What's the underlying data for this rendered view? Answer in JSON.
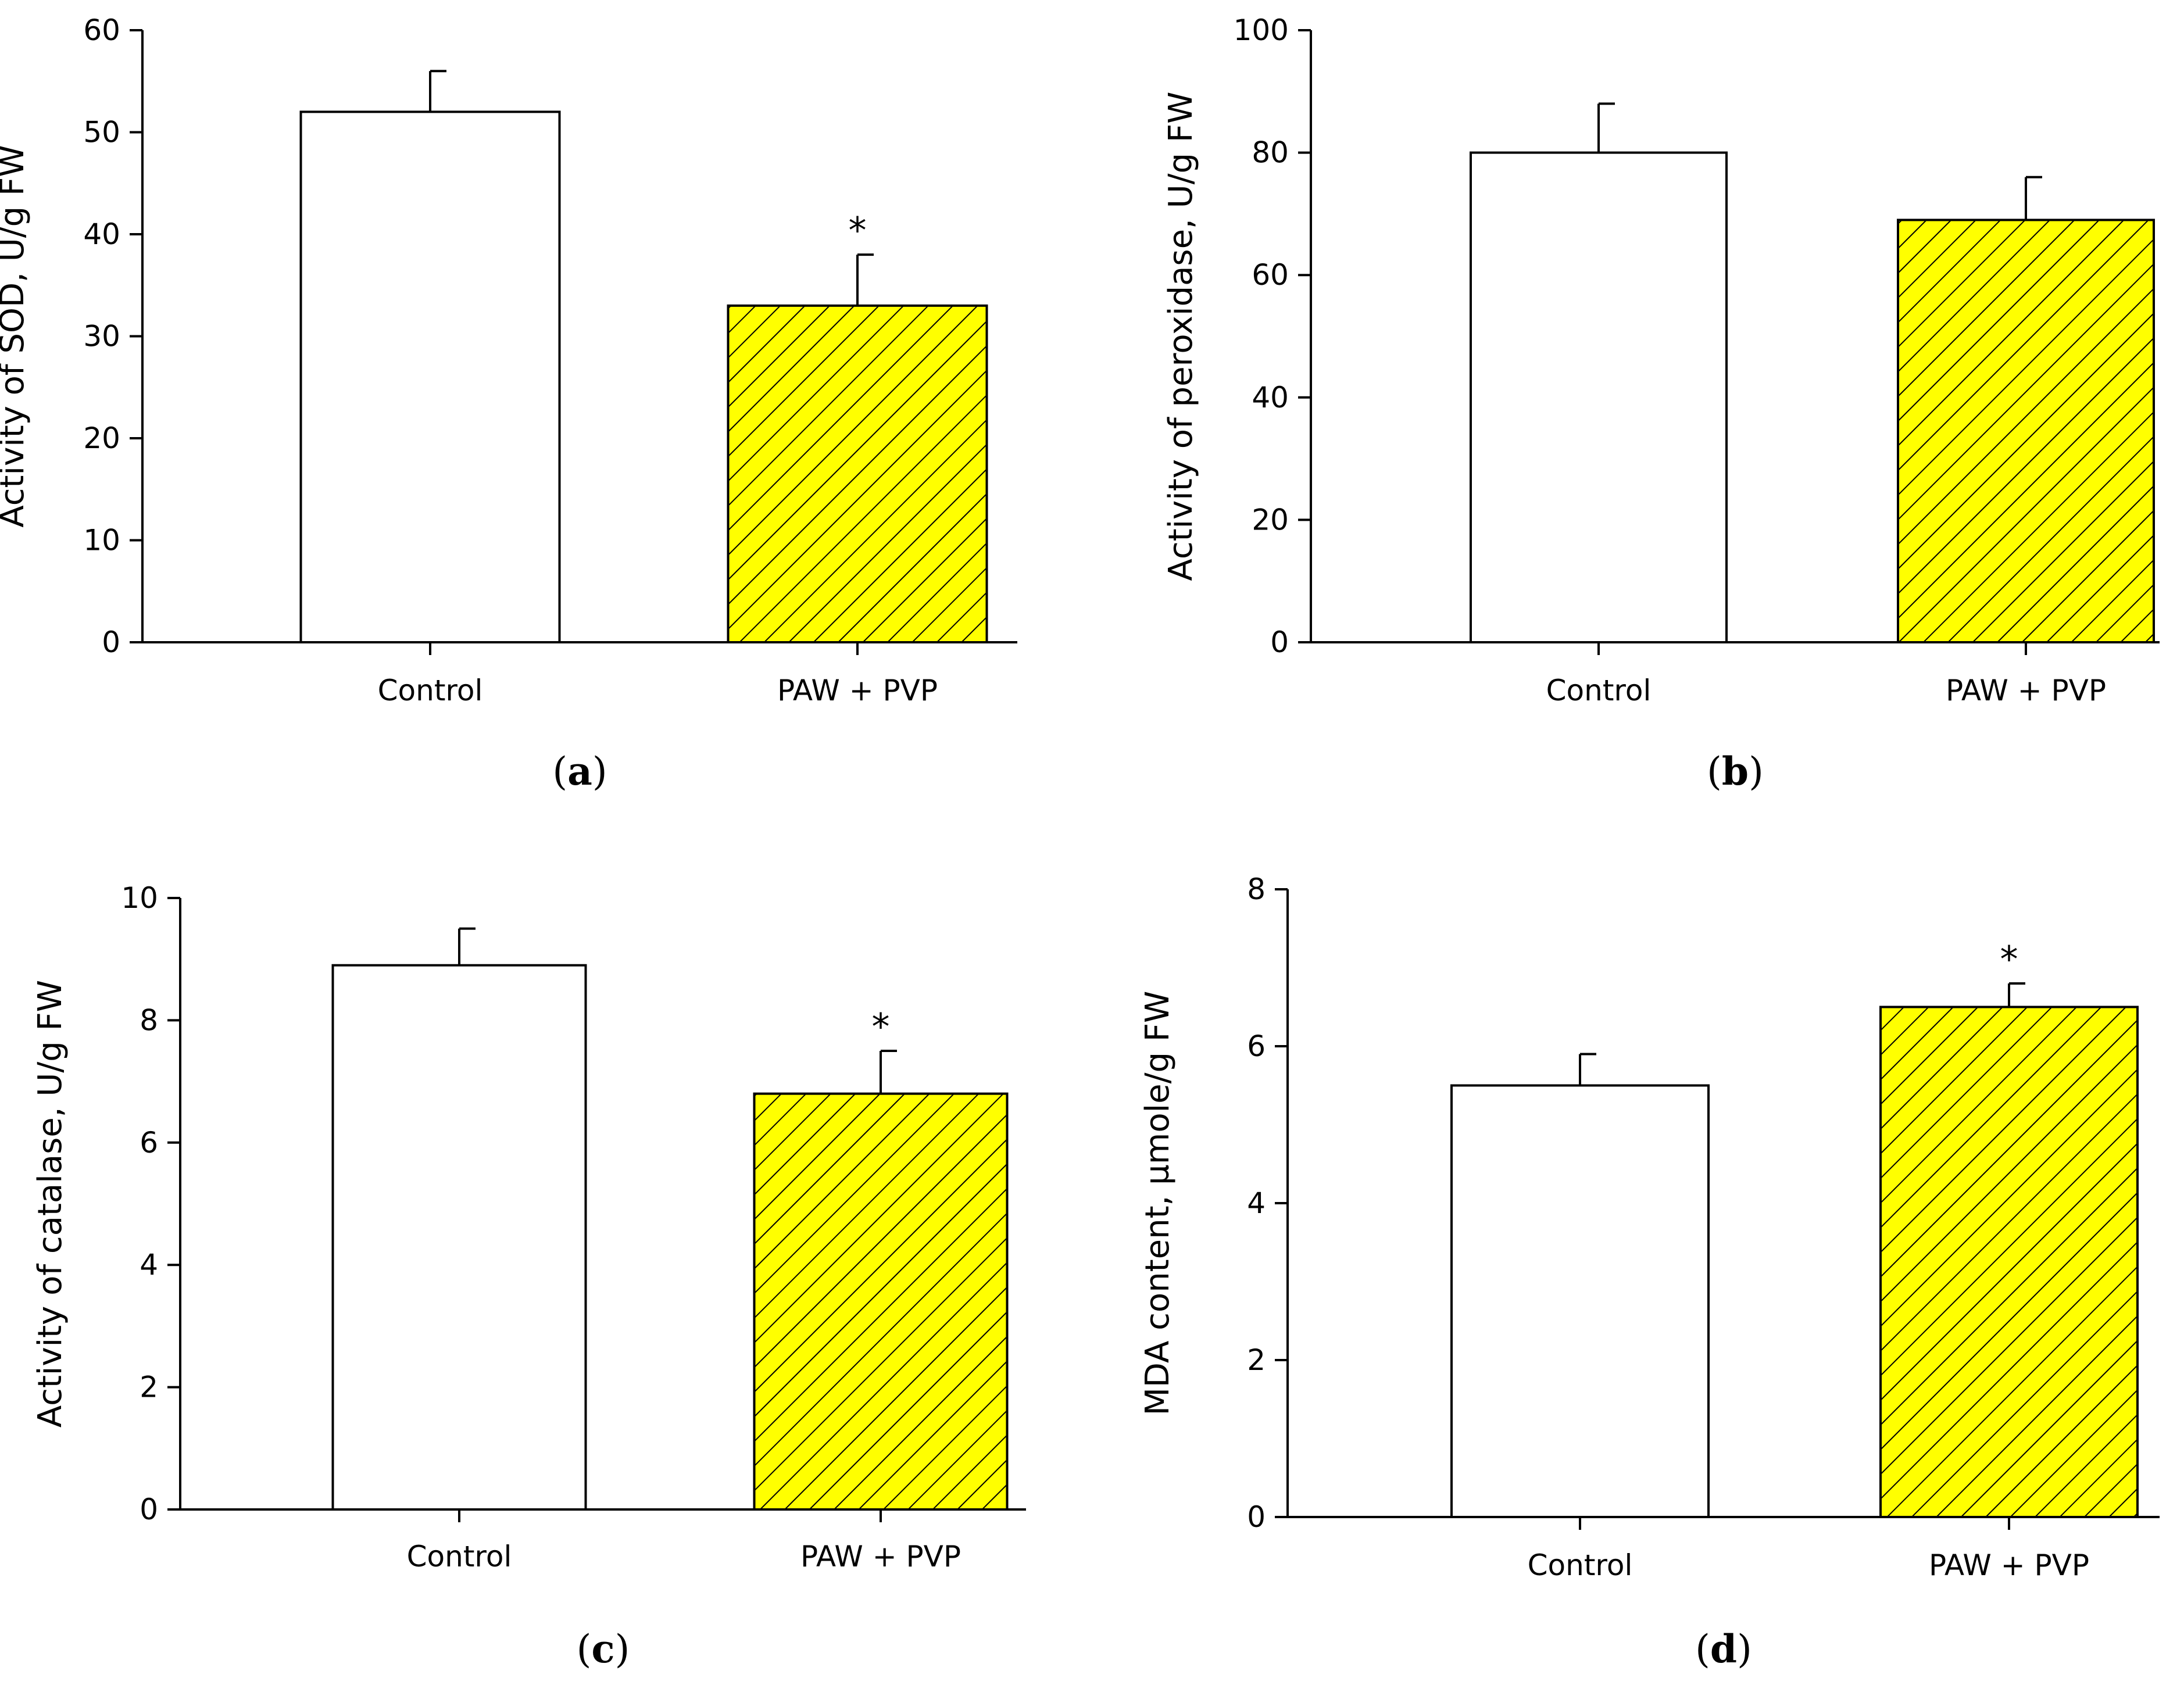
{
  "figure": {
    "colors": {
      "control_fill": "#ffffff",
      "treatment_fill": "#ffff00",
      "hatch": "#000000",
      "axis": "#000000"
    }
  },
  "chart_data": [
    {
      "id": "a",
      "type": "bar",
      "panel_label": {
        "open": "(",
        "letter": "a",
        "close": ")"
      },
      "ylabel": "Activity of SOD, U/g FW",
      "xlabel": "",
      "categories": [
        "Control",
        "PAW + PVP"
      ],
      "values": [
        52,
        33
      ],
      "errors": [
        4,
        5
      ],
      "significance": [
        "",
        "*"
      ],
      "ylim": [
        0,
        60
      ],
      "yticks": [
        0,
        10,
        20,
        30,
        40,
        50,
        60
      ],
      "grid": false
    },
    {
      "id": "b",
      "type": "bar",
      "panel_label": {
        "open": "(",
        "letter": "b",
        "close": ")"
      },
      "ylabel": "Activity of peroxidase, U/g FW",
      "xlabel": "",
      "categories": [
        "Control",
        "PAW + PVP"
      ],
      "values": [
        80,
        69
      ],
      "errors": [
        8,
        7
      ],
      "significance": [
        "",
        ""
      ],
      "ylim": [
        0,
        100
      ],
      "yticks": [
        0,
        20,
        40,
        60,
        80,
        100
      ],
      "grid": false
    },
    {
      "id": "c",
      "type": "bar",
      "panel_label": {
        "open": "(",
        "letter": "c",
        "close": ")"
      },
      "ylabel": "Activity of catalase, U/g FW",
      "xlabel": "",
      "categories": [
        "Control",
        "PAW + PVP"
      ],
      "values": [
        8.9,
        6.8
      ],
      "errors": [
        0.6,
        0.7
      ],
      "significance": [
        "",
        "*"
      ],
      "ylim": [
        0,
        10
      ],
      "yticks": [
        0,
        2,
        4,
        6,
        8,
        10
      ],
      "grid": false
    },
    {
      "id": "d",
      "type": "bar",
      "panel_label": {
        "open": "(",
        "letter": "d",
        "close": ")"
      },
      "ylabel": "MDA content, µmole/g FW",
      "xlabel": "",
      "categories": [
        "Control",
        "PAW + PVP"
      ],
      "values": [
        5.5,
        6.5
      ],
      "errors": [
        0.4,
        0.3
      ],
      "significance": [
        "",
        "*"
      ],
      "ylim": [
        0,
        8
      ],
      "yticks": [
        0,
        2,
        4,
        6,
        8
      ],
      "grid": false
    }
  ]
}
